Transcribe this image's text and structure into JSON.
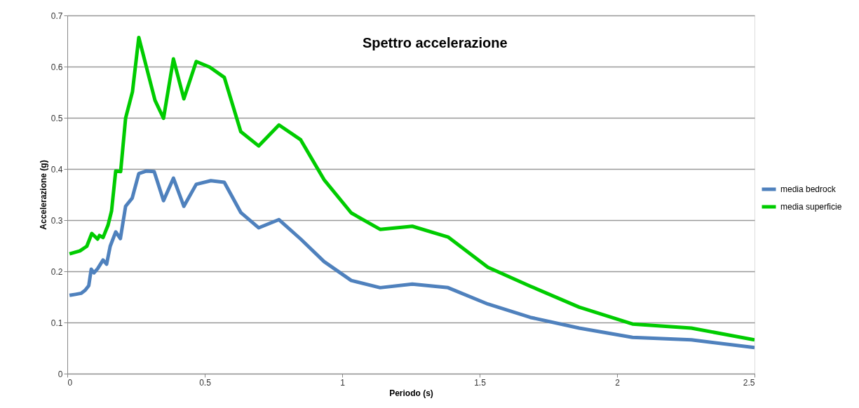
{
  "chart_data": {
    "type": "line",
    "title": "Spettro accelerazione",
    "xlabel": "Periodo (s)",
    "ylabel": "Accelerazione (g)",
    "xlim": [
      0,
      2.5
    ],
    "xticks": [
      0,
      0.5,
      1,
      1.5,
      2,
      2.5
    ],
    "ylim": [
      0,
      0.7
    ],
    "yticks": [
      0,
      0.1,
      0.2,
      0.3,
      0.4,
      0.5,
      0.6,
      0.7
    ],
    "grid": "y",
    "legend": "right",
    "marker": "none",
    "line_style": "solid",
    "series": [
      {
        "name": "media bedrock",
        "color": "#4f81bd",
        "x": [
          0.008,
          0.03,
          0.05,
          0.065,
          0.078,
          0.087,
          0.097,
          0.11,
          0.13,
          0.143,
          0.156,
          0.176,
          0.193,
          0.212,
          0.236,
          0.26,
          0.288,
          0.316,
          0.35,
          0.386,
          0.424,
          0.469,
          0.522,
          0.571,
          0.631,
          0.696,
          0.77,
          0.849,
          0.934,
          1.033,
          1.138,
          1.255,
          1.385,
          1.53,
          1.684,
          1.862,
          2.056,
          2.27,
          2.5
        ],
        "values": [
          0.153,
          0.155,
          0.157,
          0.163,
          0.172,
          0.204,
          0.197,
          0.205,
          0.222,
          0.214,
          0.249,
          0.277,
          0.264,
          0.327,
          0.343,
          0.391,
          0.396,
          0.395,
          0.338,
          0.382,
          0.327,
          0.37,
          0.377,
          0.374,
          0.315,
          0.285,
          0.301,
          0.263,
          0.219,
          0.182,
          0.168,
          0.175,
          0.168,
          0.136,
          0.11,
          0.089,
          0.071,
          0.066,
          0.051
        ]
      },
      {
        "name": "media superficie",
        "color": "#00cc00",
        "x": [
          0.008,
          0.046,
          0.071,
          0.089,
          0.11,
          0.117,
          0.13,
          0.148,
          0.161,
          0.176,
          0.194,
          0.212,
          0.237,
          0.26,
          0.319,
          0.35,
          0.386,
          0.424,
          0.469,
          0.518,
          0.571,
          0.631,
          0.696,
          0.77,
          0.849,
          0.934,
          1.033,
          1.138,
          1.255,
          1.385,
          1.53,
          1.684,
          1.862,
          2.056,
          2.27,
          2.5
        ],
        "values": [
          0.234,
          0.24,
          0.249,
          0.274,
          0.263,
          0.27,
          0.266,
          0.29,
          0.318,
          0.396,
          0.395,
          0.499,
          0.551,
          0.657,
          0.534,
          0.499,
          0.615,
          0.537,
          0.61,
          0.599,
          0.579,
          0.473,
          0.445,
          0.486,
          0.457,
          0.379,
          0.314,
          0.282,
          0.288,
          0.267,
          0.208,
          0.171,
          0.13,
          0.097,
          0.089,
          0.066
        ]
      }
    ]
  }
}
